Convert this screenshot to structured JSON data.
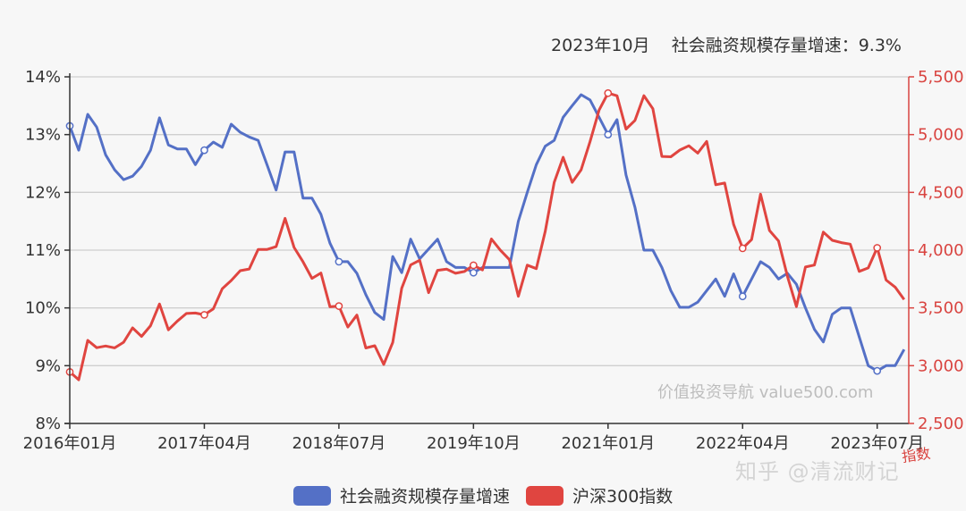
{
  "title": "2023年10月    社会融资规模存量增速：9.3%",
  "watermarks": {
    "source": "价值投资导航 value500.com",
    "zhihu": "知乎 @清流财记"
  },
  "right_axis_name": "指数",
  "legend": [
    {
      "label": "社会融资规模存量增速",
      "color": "#5470c6"
    },
    {
      "label": "沪深300指数",
      "color": "#e04540"
    }
  ],
  "chart_data": {
    "type": "line",
    "title": "2023年10月 社会融资规模存量增速：9.3%",
    "xlabel": "",
    "ylabel_left": "",
    "ylabel_right": "指数",
    "x_start": "2016-01",
    "x_end": "2023-10",
    "x_tick_labels": [
      "2016年01月",
      "2017年04月",
      "2018年07月",
      "2019年10月",
      "2021年01月",
      "2022年04月",
      "2023年07月"
    ],
    "y_left_ticks": [
      "8%",
      "9%",
      "10%",
      "11%",
      "12%",
      "13%",
      "14%"
    ],
    "y_left_range": [
      8,
      14
    ],
    "y_right_ticks": [
      "2,500",
      "3,000",
      "3,500",
      "4,000",
      "4,500",
      "5,000",
      "5,500"
    ],
    "y_right_range": [
      2500,
      5500
    ],
    "grid": true,
    "legend_position": "bottom",
    "series": [
      {
        "name": "社会融资规模存量增速",
        "axis": "left",
        "color": "#5470c6",
        "values": [
          13.15,
          12.73,
          13.35,
          13.13,
          12.65,
          12.39,
          12.22,
          12.28,
          12.45,
          12.73,
          13.29,
          12.82,
          12.75,
          12.75,
          12.48,
          12.73,
          12.87,
          12.78,
          13.18,
          13.04,
          12.96,
          12.9,
          12.47,
          12.04,
          12.7,
          12.7,
          11.9,
          11.9,
          11.62,
          11.12,
          10.8,
          10.8,
          10.6,
          10.23,
          9.92,
          9.8,
          10.89,
          10.61,
          11.19,
          10.85,
          11.02,
          11.19,
          10.8,
          10.7,
          10.7,
          10.61,
          10.7,
          10.7,
          10.7,
          10.7,
          11.5,
          12.0,
          12.48,
          12.8,
          12.9,
          13.3,
          13.5,
          13.69,
          13.6,
          13.3,
          13.0,
          13.26,
          12.3,
          11.74,
          11.0,
          11.0,
          10.7,
          10.3,
          10.01,
          10.01,
          10.1,
          10.3,
          10.5,
          10.2,
          10.59,
          10.2,
          10.5,
          10.8,
          10.7,
          10.5,
          10.6,
          10.41,
          10.0,
          9.63,
          9.41,
          9.89,
          10.0,
          10.0,
          9.5,
          9.0,
          8.91,
          9.0,
          9.0,
          9.28
        ]
      },
      {
        "name": "沪深300指数",
        "axis": "right",
        "color": "#e04540",
        "values": [
          2946,
          2878,
          3219,
          3156,
          3170,
          3154,
          3203,
          3327,
          3253,
          3346,
          3534,
          3310,
          3387,
          3452,
          3456,
          3440,
          3492,
          3666,
          3737,
          3822,
          3837,
          4006,
          4006,
          4030,
          4275,
          4023,
          3899,
          3756,
          3802,
          3510,
          3516,
          3334,
          3438,
          3153,
          3173,
          3011,
          3201,
          3670,
          3872,
          3913,
          3632,
          3825,
          3835,
          3800,
          3815,
          3869,
          3828,
          4097,
          3999,
          3918,
          3600,
          3870,
          3840,
          4163,
          4587,
          4803,
          4587,
          4695,
          4940,
          5212,
          5359,
          5336,
          5048,
          5123,
          5337,
          5224,
          4811,
          4808,
          4866,
          4903,
          4840,
          4941,
          4566,
          4581,
          4223,
          4016,
          4091,
          4485,
          4170,
          4080,
          3773,
          3511,
          3854,
          3871,
          4156,
          4085,
          4065,
          4052,
          3816,
          3846,
          4020,
          3741,
          3680,
          3573
        ]
      }
    ],
    "marked_points": [
      {
        "series": 0,
        "index": 0
      },
      {
        "series": 0,
        "index": 15
      },
      {
        "series": 0,
        "index": 30
      },
      {
        "series": 0,
        "index": 45
      },
      {
        "series": 0,
        "index": 60
      },
      {
        "series": 0,
        "index": 75
      },
      {
        "series": 0,
        "index": 90
      },
      {
        "series": 1,
        "index": 0
      },
      {
        "series": 1,
        "index": 15
      },
      {
        "series": 1,
        "index": 30
      },
      {
        "series": 1,
        "index": 45
      },
      {
        "series": 1,
        "index": 60
      },
      {
        "series": 1,
        "index": 75
      },
      {
        "series": 1,
        "index": 90
      }
    ]
  }
}
